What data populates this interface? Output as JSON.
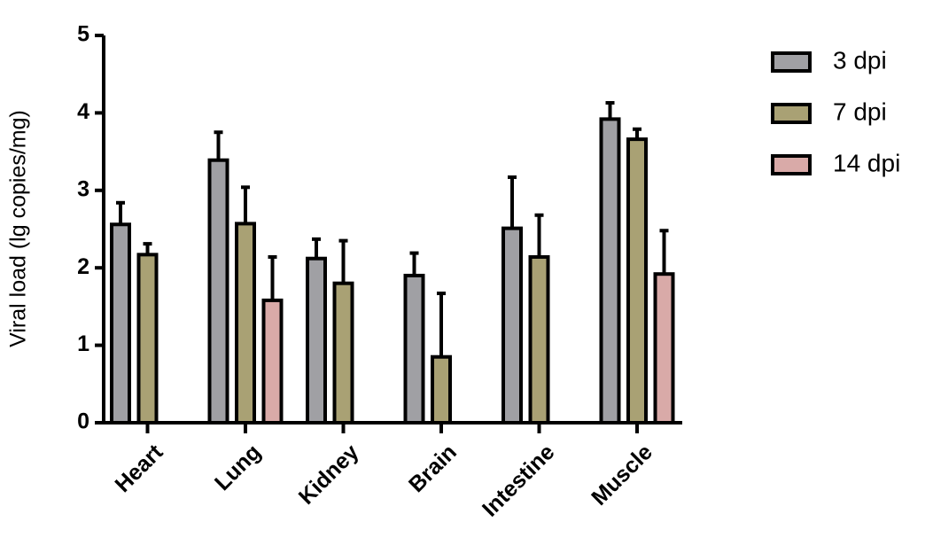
{
  "chart_data": {
    "type": "bar",
    "y_label": "Viral load (lg copies/mg)",
    "categories": [
      "Heart",
      "Lung",
      "Kidney",
      "Brain",
      "Intestine",
      "Muscle"
    ],
    "series": [
      {
        "name": "3 dpi",
        "color": "#a0a0a4",
        "values": [
          2.56,
          3.39,
          2.12,
          1.9,
          2.51,
          3.92
        ],
        "errors": [
          0.28,
          0.36,
          0.25,
          0.29,
          0.66,
          0.21
        ]
      },
      {
        "name": "7 dpi",
        "color": "#a9a174",
        "values": [
          2.17,
          2.57,
          1.8,
          0.85,
          2.14,
          3.66
        ],
        "errors": [
          0.14,
          0.47,
          0.55,
          0.82,
          0.54,
          0.13
        ]
      },
      {
        "name": "14 dpi",
        "color": "#d9aaa8",
        "values": [
          null,
          1.58,
          null,
          null,
          null,
          1.92
        ],
        "errors": [
          null,
          0.56,
          null,
          null,
          null,
          0.56
        ]
      }
    ],
    "ylim": [
      0,
      5
    ],
    "yticks": [
      0,
      1,
      2,
      3,
      4,
      5
    ]
  }
}
